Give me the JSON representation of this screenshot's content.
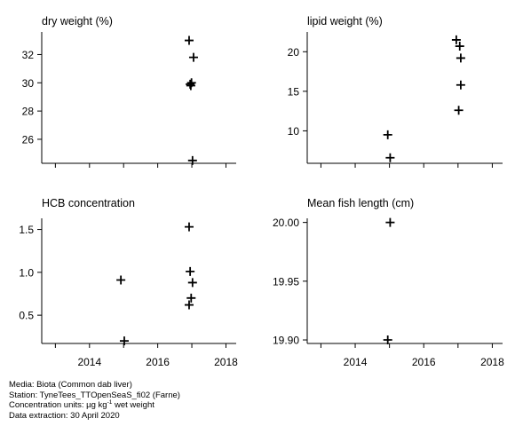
{
  "chart_data": [
    {
      "type": "scatter",
      "title": "dry weight (%)",
      "x": [
        2016.92,
        2016.95,
        2016.97,
        2016.99,
        2017.05,
        2017.02
      ],
      "y": [
        33.0,
        29.9,
        29.8,
        30.0,
        31.8,
        24.5
      ],
      "xlim": [
        2012.6,
        2018.3
      ],
      "xticks": [
        "2014",
        "2016",
        "2018"
      ],
      "ylim": [
        24.3,
        33.6
      ],
      "yticks": [
        "26",
        "28",
        "30",
        "32"
      ],
      "grid": false
    },
    {
      "type": "scatter",
      "title": "lipid weight (%)",
      "x": [
        2014.95,
        2015.02,
        2016.95,
        2017.05,
        2017.08,
        2017.08,
        2017.02
      ],
      "y": [
        9.5,
        6.6,
        21.5,
        20.7,
        19.2,
        15.8,
        12.6
      ],
      "xlim": [
        2012.6,
        2018.3
      ],
      "xticks": [
        "2014",
        "2016",
        "2018"
      ],
      "ylim": [
        5.9,
        22.5
      ],
      "yticks": [
        "10",
        "15",
        "20"
      ],
      "grid": false
    },
    {
      "type": "scatter",
      "title": "HCB concentration",
      "x": [
        2014.92,
        2015.02,
        2016.92,
        2016.95,
        2017.02,
        2016.98,
        2016.92
      ],
      "y": [
        0.91,
        0.2,
        1.53,
        1.01,
        0.88,
        0.7,
        0.62
      ],
      "xlim": [
        2012.6,
        2018.3
      ],
      "xticks": [
        "2014",
        "2016",
        "2018"
      ],
      "ylim": [
        0.17,
        1.63
      ],
      "yticks": [
        "0.5",
        "1.0",
        "1.5"
      ],
      "grid": false
    },
    {
      "type": "scatter",
      "title": "Mean fish length (cm)",
      "x": [
        2015.02,
        2014.95
      ],
      "y": [
        20.0,
        19.9
      ],
      "xlim": [
        2012.6,
        2018.3
      ],
      "xticks": [
        "2014",
        "2016",
        "2018"
      ],
      "ylim": [
        19.897,
        20.0035
      ],
      "yticks": [
        "19.90",
        "19.95",
        "20.00"
      ],
      "grid": false
    }
  ],
  "footer": {
    "media": "Media: Biota (Common dab liver)",
    "station": "Station: TyneTees_TTOpenSeaS_fi02 (Farne)",
    "units_prefix": "Concentration units:  µg kg",
    "units_sup": "-1",
    "units_suffix": " wet weight",
    "extraction": "Data extraction: 30 April 2020"
  }
}
